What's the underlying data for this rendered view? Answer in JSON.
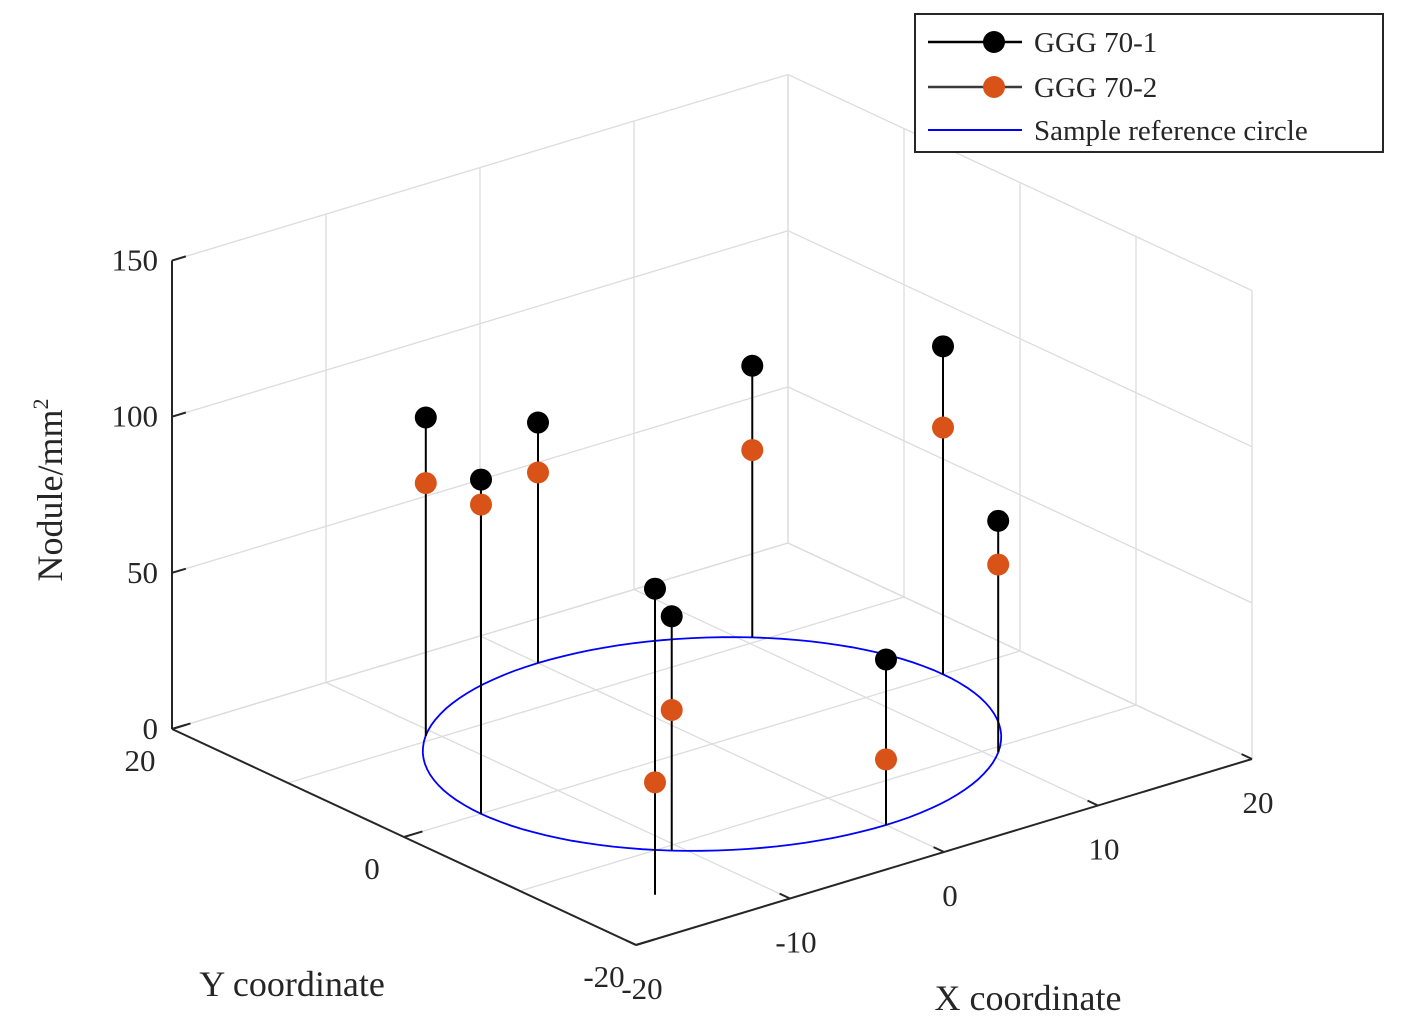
{
  "chart_data": {
    "type": "stem3d",
    "title": "",
    "xlabel": "X coordinate",
    "ylabel": "Y coordinate",
    "zlabel": "Nodule/mm",
    "zlabel_superscript": "2",
    "xlim": [
      -20,
      20
    ],
    "ylim": [
      -20,
      20
    ],
    "zlim": [
      0,
      150
    ],
    "x_ticks": [
      -20,
      -10,
      0,
      10,
      20
    ],
    "x_tick_labels": [
      "-20",
      "-10",
      "0",
      "10",
      "20"
    ],
    "y_ticks": [
      -20,
      0,
      20
    ],
    "y_tick_labels": [
      "-20",
      "0",
      "20"
    ],
    "z_ticks": [
      0,
      50,
      100,
      150
    ],
    "z_tick_labels": [
      "0",
      "50",
      "100",
      "150"
    ],
    "grid": true,
    "legend_position": "top-right",
    "legend": [
      "GGG 70-1",
      "GGG 70-2",
      "Sample reference circle"
    ],
    "colors": {
      "series1": "#000000",
      "series2": "#d95319",
      "circle": "#0000ff",
      "stem": "#000000",
      "grid": "#dcdcdc",
      "axis": "#262626"
    },
    "points": [
      {
        "x": 0,
        "y": -15,
        "z1": 53,
        "z2": 21
      },
      {
        "x": 10.6,
        "y": -10.6,
        "z1": 74,
        "z2": 60
      },
      {
        "x": 15,
        "y": 0,
        "z1": 105,
        "z2": 79
      },
      {
        "x": 10.6,
        "y": 10.6,
        "z1": 87,
        "z2": 60
      },
      {
        "x": 0,
        "y": 15,
        "z1": 77,
        "z2": 61
      },
      {
        "x": -10.6,
        "y": 10.6,
        "z1": 102,
        "z2": 81
      },
      {
        "x": -15,
        "y": 0,
        "z1": 107,
        "z2": 99
      },
      {
        "x": -10.6,
        "y": -10.6,
        "z1": 75,
        "z2": 45
      },
      {
        "x": -15,
        "y": -15,
        "z1": 98,
        "z2": 36
      }
    ],
    "circle": {
      "cx": 0,
      "cy": 0,
      "r": 15,
      "z": 0
    }
  }
}
